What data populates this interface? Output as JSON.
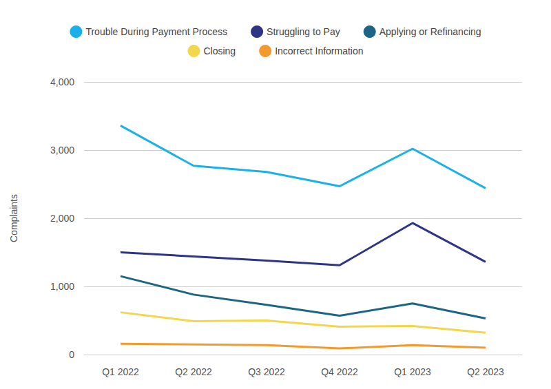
{
  "chart_data": {
    "type": "line",
    "y_label": "Complaints",
    "categories": [
      "Q1 2022",
      "Q2 2022",
      "Q3 2022",
      "Q4 2022",
      "Q1 2023",
      "Q2 2023"
    ],
    "series": [
      {
        "name": "Trouble During Payment Process",
        "color": "#1ab0e8",
        "values": [
          3360,
          2770,
          2680,
          2470,
          3020,
          2440
        ]
      },
      {
        "name": "Struggling to Pay",
        "color": "#2e3585",
        "values": [
          1500,
          1440,
          1380,
          1310,
          1930,
          1360
        ]
      },
      {
        "name": "Applying or Refinancing",
        "color": "#1d6585",
        "values": [
          1150,
          880,
          730,
          570,
          750,
          530
        ]
      },
      {
        "name": "Closing",
        "color": "#f2d64b",
        "values": [
          620,
          490,
          500,
          410,
          420,
          320
        ]
      },
      {
        "name": "Incorrect Information",
        "color": "#f29a2e",
        "values": [
          160,
          150,
          140,
          90,
          140,
          100
        ]
      }
    ],
    "ylim": [
      0,
      4000
    ],
    "yticks": [
      0,
      {
        "value": 1000,
        "label": "1,000"
      },
      {
        "value": 2000,
        "label": "2,000"
      },
      {
        "value": 3000,
        "label": "3,000"
      },
      {
        "value": 4000,
        "label": "4,000"
      }
    ],
    "grid": true,
    "legend": "top"
  }
}
